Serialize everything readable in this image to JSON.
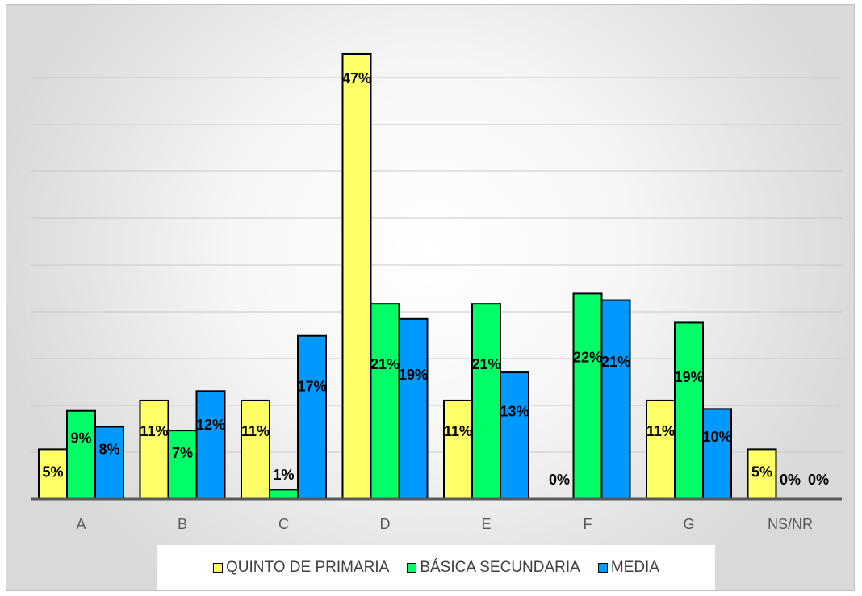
{
  "chart_data": {
    "type": "bar",
    "title": "",
    "xlabel": "",
    "ylabel": "",
    "categories": [
      "A",
      "B",
      "C",
      "D",
      "E",
      "F",
      "G",
      "NS/NR"
    ],
    "ylim": [
      0,
      0.48
    ],
    "grid": true,
    "legend_position": "bottom",
    "series": [
      {
        "name": "QUINTO DE PRIMARIA",
        "color": "#ffff66",
        "values": [
          0.053,
          0.105,
          0.105,
          0.474,
          0.105,
          0.0,
          0.105,
          0.053
        ],
        "labels": [
          "5%",
          "11%",
          "11%",
          "47%",
          "11%",
          "0%",
          "11%",
          "5%"
        ]
      },
      {
        "name": "BÁSICA SECUNDARIA",
        "color": "#00ff66",
        "values": [
          0.094,
          0.073,
          0.01,
          0.208,
          0.208,
          0.219,
          0.188,
          0.0
        ],
        "labels": [
          "9%",
          "7%",
          "1%",
          "21%",
          "21%",
          "22%",
          "19%",
          "0%"
        ]
      },
      {
        "name": "MEDIA",
        "color": "#0099ff",
        "values": [
          0.077,
          0.115,
          0.174,
          0.192,
          0.135,
          0.212,
          0.096,
          0.0
        ],
        "labels": [
          "8%",
          "12%",
          "17%",
          "19%",
          "13%",
          "21%",
          "10%",
          "0%"
        ]
      }
    ]
  }
}
